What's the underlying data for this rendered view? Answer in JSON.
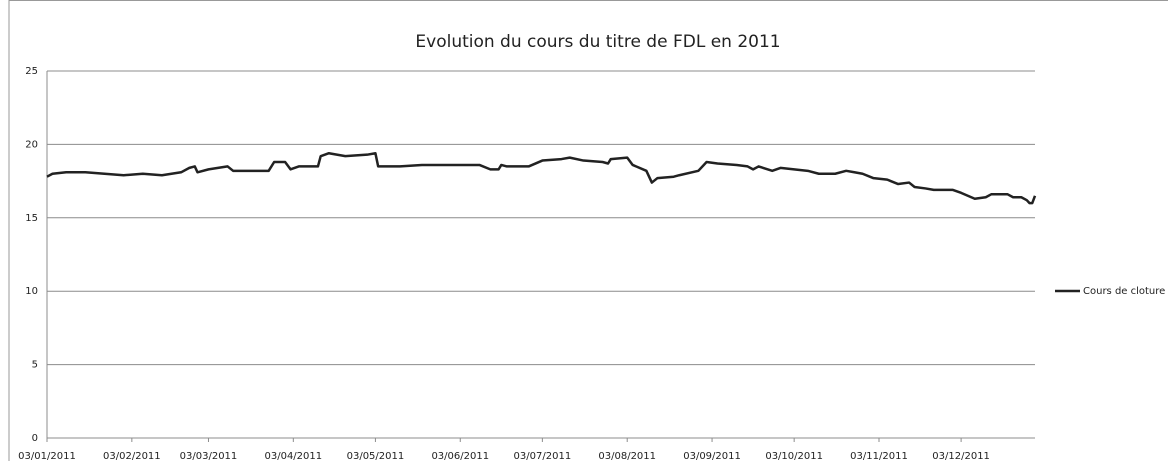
{
  "chart_data": {
    "type": "line",
    "title": "Evolution du cours  du titre de FDL en 2011",
    "x": [
      "03/01/2011",
      "05/01/2011",
      "10/01/2011",
      "17/01/2011",
      "24/01/2011",
      "31/01/2011",
      "07/02/2011",
      "14/02/2011",
      "21/02/2011",
      "24/02/2011",
      "26/02/2011",
      "27/02/2011",
      "03/03/2011",
      "10/03/2011",
      "12/03/2011",
      "25/03/2011",
      "27/03/2011",
      "31/03/2011",
      "02/04/2011",
      "05/04/2011",
      "12/04/2011",
      "13/04/2011",
      "16/04/2011",
      "22/04/2011",
      "30/04/2011",
      "03/05/2011",
      "04/05/2011",
      "12/05/2011",
      "20/05/2011",
      "03/06/2011",
      "10/06/2011",
      "14/06/2011",
      "17/06/2011",
      "18/06/2011",
      "20/06/2011",
      "28/06/2011",
      "03/07/2011",
      "10/07/2011",
      "13/07/2011",
      "18/07/2011",
      "25/07/2011",
      "27/07/2011",
      "28/07/2011",
      "03/08/2011",
      "05/08/2011",
      "10/08/2011",
      "12/08/2011",
      "14/08/2011",
      "20/08/2011",
      "22/08/2011",
      "29/08/2011",
      "01/09/2011",
      "05/09/2011",
      "12/09/2011",
      "16/09/2011",
      "18/09/2011",
      "20/09/2011",
      "25/09/2011",
      "28/09/2011",
      "03/10/2011",
      "08/10/2011",
      "12/10/2011",
      "18/10/2011",
      "22/10/2011",
      "25/10/2011",
      "28/10/2011",
      "01/11/2011",
      "06/11/2011",
      "10/11/2011",
      "14/11/2011",
      "16/11/2011",
      "20/11/2011",
      "23/11/2011",
      "30/11/2011",
      "03/12/2011",
      "08/12/2011",
      "12/12/2011",
      "14/12/2011",
      "20/12/2011",
      "22/12/2011",
      "25/12/2011",
      "27/12/2011",
      "28/12/2011",
      "29/12/2011",
      "30/12/2011"
    ],
    "series": [
      {
        "name": "Cours de cloture",
        "color": "#222222",
        "values": [
          17.8,
          18.0,
          18.1,
          18.1,
          18.0,
          17.9,
          18.0,
          17.9,
          18.1,
          18.4,
          18.5,
          18.1,
          18.3,
          18.5,
          18.2,
          18.2,
          18.8,
          18.8,
          18.3,
          18.5,
          18.5,
          19.2,
          19.4,
          19.2,
          19.3,
          19.4,
          18.5,
          18.5,
          18.6,
          18.6,
          18.6,
          18.3,
          18.3,
          18.6,
          18.5,
          18.5,
          18.9,
          19.0,
          19.1,
          18.9,
          18.8,
          18.7,
          19.0,
          19.1,
          18.6,
          18.2,
          17.4,
          17.7,
          17.8,
          17.9,
          18.2,
          18.8,
          18.7,
          18.6,
          18.5,
          18.3,
          18.5,
          18.2,
          18.4,
          18.3,
          18.2,
          18.0,
          18.0,
          18.2,
          18.1,
          18.0,
          17.7,
          17.6,
          17.3,
          17.4,
          17.1,
          17.0,
          16.9,
          16.9,
          16.7,
          16.3,
          16.4,
          16.6,
          16.6,
          16.4,
          16.4,
          16.2,
          16.0,
          16.0,
          16.5
        ]
      }
    ],
    "xlim": [
      "03/01/2011",
      "30/12/2011"
    ],
    "xticks": [
      "03/01/2011",
      "03/02/2011",
      "03/03/2011",
      "03/04/2011",
      "03/05/2011",
      "03/06/2011",
      "03/07/2011",
      "03/08/2011",
      "03/09/2011",
      "03/10/2011",
      "03/11/2011",
      "03/12/2011"
    ],
    "ylim": [
      0,
      25
    ],
    "yticks": [
      0,
      5,
      10,
      15,
      20,
      25
    ],
    "grid": true,
    "legend": "right"
  }
}
